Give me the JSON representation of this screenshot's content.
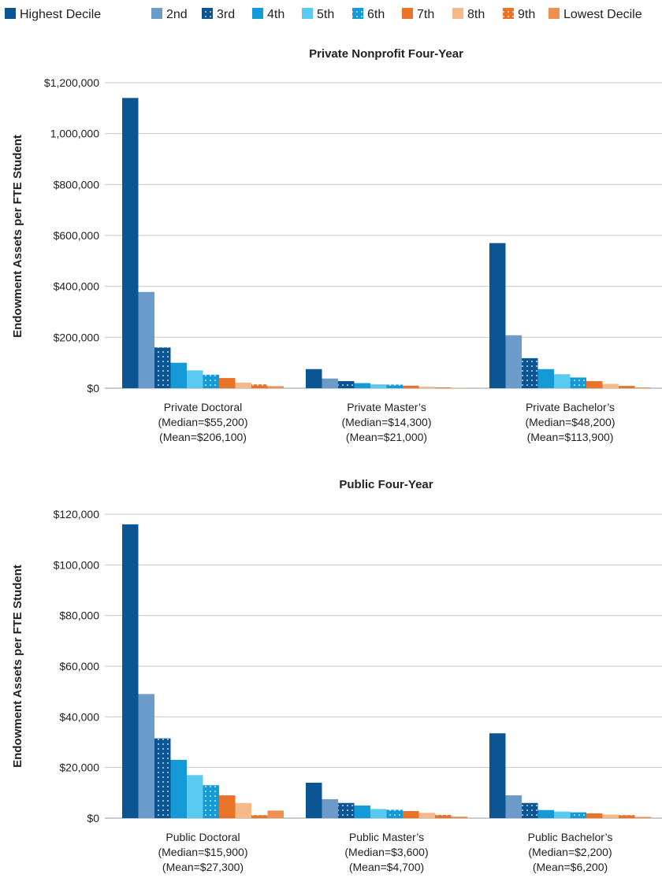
{
  "legend": [
    {
      "label": "Highest Decile",
      "color": "#0a5592",
      "pattern": "solid"
    },
    {
      "label": "2nd",
      "color": "#6c9ac9",
      "pattern": "solid"
    },
    {
      "label": "3rd",
      "color": "#0a5592",
      "pattern": "dots"
    },
    {
      "label": "4th",
      "color": "#149bd7",
      "pattern": "solid"
    },
    {
      "label": "5th",
      "color": "#5bcaf0",
      "pattern": "solid"
    },
    {
      "label": "6th",
      "color": "#149bd7",
      "pattern": "dots"
    },
    {
      "label": "7th",
      "color": "#e8742a",
      "pattern": "solid"
    },
    {
      "label": "8th",
      "color": "#f6b98a",
      "pattern": "solid"
    },
    {
      "label": "9th",
      "color": "#e8742a",
      "pattern": "dots"
    },
    {
      "label": "Lowest Decile",
      "color": "#ee9150",
      "pattern": "solid"
    }
  ],
  "chart_data": [
    {
      "type": "bar",
      "title": "Private Nonprofit Four-Year",
      "ylabel": "Endowment Assets per FTE Student",
      "xlabel": "",
      "ylim": [
        0,
        1200000
      ],
      "yticks": [
        "$0",
        "$200,000",
        "$400,000",
        "$600,000",
        "$800,000",
        "1,000,000",
        "$1,200,000"
      ],
      "grid": true,
      "categories": [
        [
          "Private Doctoral",
          "(Median=$55,200)",
          "(Mean=$206,100)"
        ],
        [
          "Private Master’s",
          "(Median=$14,300)",
          "(Mean=$21,000)"
        ],
        [
          "Private Bachelor’s",
          "(Median=$48,200)",
          "(Mean=$113,900)"
        ]
      ],
      "series": [
        {
          "name": "Highest Decile",
          "values": [
            1140000,
            75000,
            570000
          ]
        },
        {
          "name": "2nd",
          "values": [
            378000,
            38000,
            208000
          ]
        },
        {
          "name": "3rd",
          "values": [
            160000,
            28000,
            118000
          ]
        },
        {
          "name": "4th",
          "values": [
            100000,
            20000,
            75000
          ]
        },
        {
          "name": "5th",
          "values": [
            70000,
            15000,
            55000
          ]
        },
        {
          "name": "6th",
          "values": [
            53000,
            14000,
            42000
          ]
        },
        {
          "name": "7th",
          "values": [
            40000,
            10000,
            28000
          ]
        },
        {
          "name": "8th",
          "values": [
            22000,
            6000,
            17000
          ]
        },
        {
          "name": "9th",
          "values": [
            15000,
            3000,
            9000
          ]
        },
        {
          "name": "Lowest Decile",
          "values": [
            8000,
            1000,
            3000
          ]
        }
      ]
    },
    {
      "type": "bar",
      "title": "Public Four-Year",
      "ylabel": "Endowment Assets per FTE Student",
      "xlabel": "",
      "ylim": [
        0,
        120000
      ],
      "yticks": [
        "$0",
        "$20,000",
        "$40,000",
        "$60,000",
        "$80,000",
        "$100,000",
        "$120,000"
      ],
      "grid": true,
      "categories": [
        [
          "Public Doctoral",
          "(Median=$15,900)",
          "(Mean=$27,300)"
        ],
        [
          "Public Master’s",
          "(Median=$3,600)",
          "(Mean=$4,700)"
        ],
        [
          "Public Bachelor’s",
          "(Median=$2,200)",
          "(Mean=$6,200)"
        ]
      ],
      "series": [
        {
          "name": "Highest Decile",
          "values": [
            116000,
            14000,
            33500
          ]
        },
        {
          "name": "2nd",
          "values": [
            49000,
            7500,
            9000
          ]
        },
        {
          "name": "3rd",
          "values": [
            31500,
            6000,
            6000
          ]
        },
        {
          "name": "4th",
          "values": [
            23000,
            5000,
            3200
          ]
        },
        {
          "name": "5th",
          "values": [
            17000,
            3600,
            2600
          ]
        },
        {
          "name": "6th",
          "values": [
            13000,
            3300,
            2300
          ]
        },
        {
          "name": "7th",
          "values": [
            9000,
            2800,
            1900
          ]
        },
        {
          "name": "8th",
          "values": [
            6000,
            2100,
            1400
          ]
        },
        {
          "name": "9th",
          "values": [
            1200,
            1300,
            1200
          ]
        },
        {
          "name": "Lowest Decile",
          "values": [
            3000,
            600,
            500
          ]
        }
      ]
    }
  ]
}
